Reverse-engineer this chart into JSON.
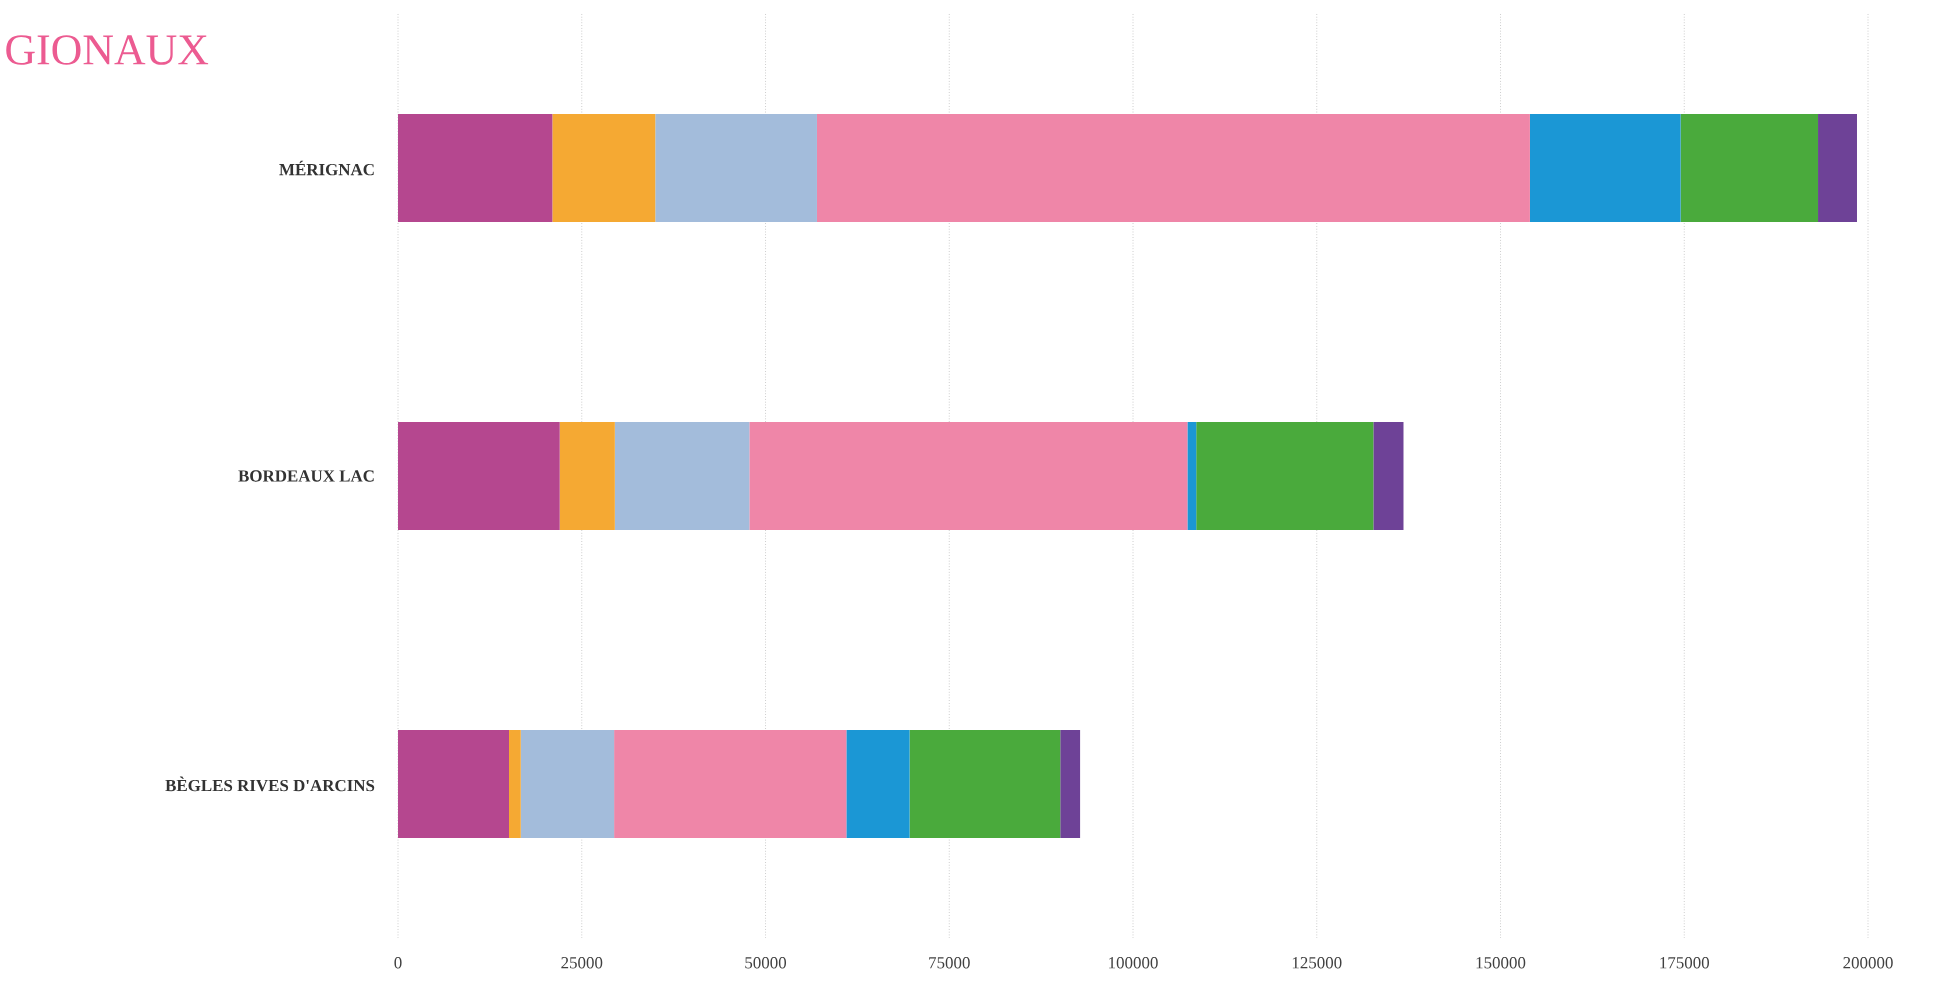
{
  "chart_data": {
    "type": "bar",
    "orientation": "horizontal",
    "stacked": true,
    "title": "GIONAUX",
    "categories": [
      "MÉRIGNAC",
      "BORDEAUX LAC",
      "BÈGLES RIVES D'ARCINS"
    ],
    "series": [
      {
        "color": "#b5478f",
        "values": [
          21000,
          22000,
          15100
        ]
      },
      {
        "color": "#f5a933",
        "values": [
          14000,
          7500,
          1600
        ]
      },
      {
        "color": "#a3bcdb",
        "values": [
          22000,
          18300,
          12700
        ]
      },
      {
        "color": "#ef86a8",
        "values": [
          97000,
          59600,
          31600
        ]
      },
      {
        "color": "#1b97d5",
        "values": [
          20500,
          1200,
          8600
        ]
      },
      {
        "color": "#4aaa3c",
        "values": [
          18700,
          24100,
          20500
        ]
      },
      {
        "color": "#6e4297",
        "values": [
          5300,
          4100,
          2700
        ]
      }
    ],
    "xlim": [
      0,
      200000
    ],
    "xticks": [
      0,
      25000,
      50000,
      75000,
      100000,
      125000,
      150000,
      175000,
      200000
    ],
    "grid": "x"
  }
}
